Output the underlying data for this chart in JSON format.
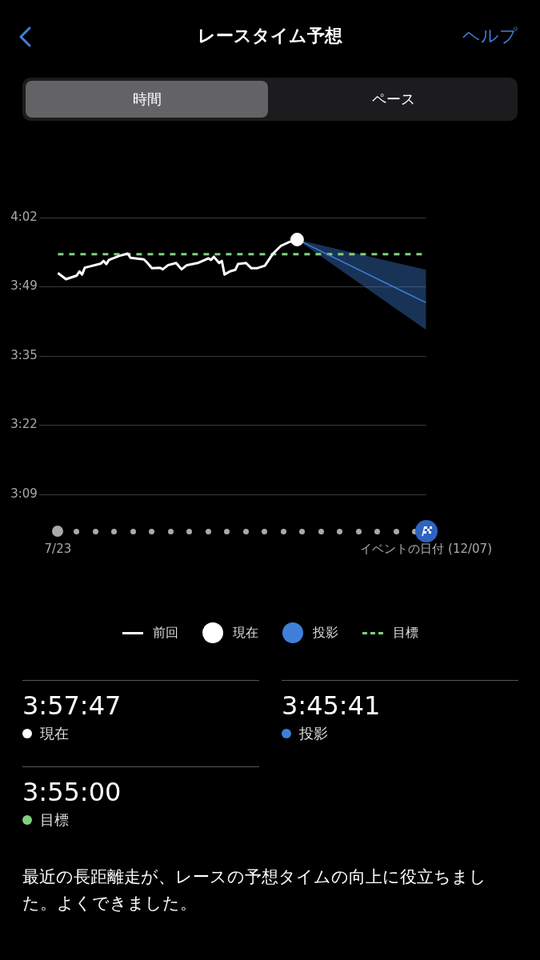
{
  "chart_data": {
    "type": "line",
    "title": "レースタイム予想",
    "xlim": [
      "--07-16",
      "--12-07"
    ],
    "xticks": [
      {
        "value": "--07-23",
        "label": "7/23"
      },
      {
        "value": "--12-07",
        "label": "イベントの日付 (12/07)"
      }
    ],
    "ylim": [
      189,
      242
    ],
    "yticks": [
      {
        "value": 242,
        "label": "4:02"
      },
      {
        "value": 228.75,
        "label": "3:49"
      },
      {
        "value": 215.5,
        "label": "3:35"
      },
      {
        "value": 202.25,
        "label": "3:22"
      },
      {
        "value": 189,
        "label": "3:09"
      }
    ],
    "grid": "y",
    "legend": "bottom",
    "series": [
      {
        "name": "前回",
        "color": "#ffffff",
        "x": [
          "--07-23",
          "--07-26",
          "--07-30",
          "--07-31",
          "--08-01",
          "--08-02",
          "--08-08",
          "--08-09",
          "--08-10",
          "--08-11",
          "--08-15",
          "--08-18",
          "--08-19",
          "--08-24",
          "--08-25",
          "--08-27",
          "--08-30",
          "--08-31",
          "--09-02",
          "--09-05",
          "--09-07",
          "--09-09",
          "--09-13",
          "--09-17",
          "--09-18",
          "--09-19",
          "--09-21",
          "--09-22",
          "--09-23",
          "--09-25",
          "--09-27",
          "--09-28",
          "--10-01",
          "--10-03",
          "--10-05",
          "--10-08",
          "--10-11",
          "--10-14",
          "--10-17",
          "--10-20"
        ],
        "values": [
          231.4,
          230.2,
          230.9,
          231.7,
          231.1,
          232.4,
          233.2,
          233.7,
          233.1,
          233.9,
          234.7,
          235.1,
          234.3,
          234.0,
          233.5,
          232.3,
          232.4,
          232.1,
          232.9,
          233.3,
          232.1,
          232.9,
          233.3,
          234.2,
          233.9,
          234.5,
          233.3,
          233.7,
          231.1,
          231.7,
          232.0,
          233.1,
          233.3,
          232.3,
          232.3,
          232.8,
          235.1,
          236.6,
          237.3,
          237.8
        ]
      },
      {
        "name": "現在",
        "type": "scatter",
        "color": "#ffffff",
        "x": [
          "--10-20"
        ],
        "values": [
          237.8
        ]
      },
      {
        "name": "投影",
        "type": "line",
        "color": "#3f7fd9",
        "x": [
          "--10-20",
          "--12-07"
        ],
        "values": [
          237.8,
          225.7
        ],
        "lower": [
          237.8,
          220.5
        ],
        "upper": [
          237.8,
          232.0
        ]
      },
      {
        "name": "目標",
        "type": "line",
        "color": "#7fd17f",
        "line_style": "dashed",
        "x": [
          "--07-23",
          "--12-07"
        ],
        "values": [
          235,
          235
        ]
      }
    ],
    "annotations": [
      "ヘルプ",
      "時間",
      "ペース",
      "3:57:47",
      "現在",
      "3:45:41",
      "投影",
      "3:55:00",
      "目標",
      "最近の長距離走が、レースの予想タイムの向上に役立ちました。よくできました。"
    ]
  }
}
